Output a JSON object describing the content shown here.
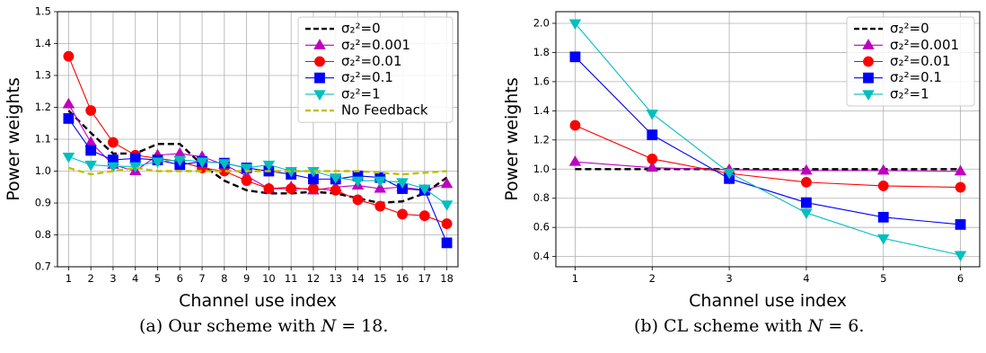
{
  "chart_data": [
    {
      "type": "line",
      "xlabel": "Channel use index",
      "ylabel": "Power weights",
      "xlim": [
        0.5,
        18.5
      ],
      "ylim": [
        0.7,
        1.5
      ],
      "xticks": [
        1,
        2,
        3,
        4,
        5,
        6,
        7,
        8,
        9,
        10,
        11,
        12,
        13,
        14,
        15,
        16,
        17,
        18
      ],
      "yticks": [
        0.7,
        0.8,
        0.9,
        1.0,
        1.1,
        1.2,
        1.3,
        1.4,
        1.5
      ],
      "ytick_decimals": 1,
      "grid": true,
      "legend_position": "top-right",
      "x": [
        1,
        2,
        3,
        4,
        5,
        6,
        7,
        8,
        9,
        10,
        11,
        12,
        13,
        14,
        15,
        16,
        17,
        18
      ],
      "series": [
        {
          "name": "σ₂²=0",
          "color": "#000000",
          "style": "dashed",
          "marker": "none",
          "values": [
            1.19,
            1.12,
            1.055,
            1.055,
            1.085,
            1.085,
            1.02,
            0.97,
            0.94,
            0.93,
            0.93,
            0.935,
            0.93,
            0.915,
            0.9,
            0.905,
            0.93,
            0.98
          ]
        },
        {
          "name": "σ₂²=0.001",
          "color": "#bf00bf",
          "style": "solid",
          "marker": "triangle-up",
          "values": [
            1.21,
            1.09,
            1.02,
            1.0,
            1.05,
            1.055,
            1.045,
            1.02,
            0.985,
            0.945,
            0.95,
            0.94,
            0.95,
            0.955,
            0.945,
            0.95,
            0.94,
            0.96
          ]
        },
        {
          "name": "σ₂²=0.01",
          "color": "#ff0000",
          "style": "solid",
          "marker": "circle",
          "values": [
            1.36,
            1.19,
            1.09,
            1.05,
            1.04,
            1.03,
            1.01,
            1.0,
            0.97,
            0.945,
            0.945,
            0.945,
            0.94,
            0.91,
            0.89,
            0.865,
            0.86,
            0.835
          ]
        },
        {
          "name": "σ₂²=0.1",
          "color": "#0000ff",
          "style": "solid",
          "marker": "square",
          "values": [
            1.165,
            1.065,
            1.035,
            1.04,
            1.035,
            1.02,
            1.03,
            1.025,
            1.01,
            1.0,
            0.99,
            0.975,
            0.975,
            0.985,
            0.98,
            0.945,
            0.94,
            0.775
          ]
        },
        {
          "name": "σ₂²=1",
          "color": "#00bfbf",
          "style": "solid",
          "marker": "triangle-down",
          "values": [
            1.045,
            1.02,
            1.015,
            1.015,
            1.03,
            1.035,
            1.03,
            1.025,
            1.01,
            1.02,
            1.0,
            1.0,
            0.98,
            0.97,
            0.97,
            0.965,
            0.945,
            0.895
          ]
        },
        {
          "name": "No Feedback",
          "color": "#bfbf00",
          "style": "dashed",
          "marker": "none",
          "values": [
            1.01,
            0.99,
            1.0,
            1.01,
            1.0,
            1.0,
            1.0,
            1.0,
            1.0,
            1.0,
            1.0,
            1.0,
            1.0,
            1.0,
            0.995,
            0.99,
            0.995,
            1.0
          ]
        }
      ]
    },
    {
      "type": "line",
      "xlabel": "Channel use index",
      "ylabel": "Power weights",
      "xlim": [
        0.75,
        6.25
      ],
      "ylim": [
        0.33,
        2.08
      ],
      "xticks": [
        1,
        2,
        3,
        4,
        5,
        6
      ],
      "yticks": [
        0.4,
        0.6,
        0.8,
        1.0,
        1.2,
        1.4,
        1.6,
        1.8,
        2.0
      ],
      "ytick_decimals": 1,
      "grid": true,
      "legend_position": "top-right",
      "x": [
        1,
        2,
        3,
        4,
        5,
        6
      ],
      "series": [
        {
          "name": "σ₂²=0",
          "color": "#000000",
          "style": "dashed",
          "marker": "none",
          "values": [
            1.0,
            1.0,
            1.0,
            1.0,
            1.0,
            1.0
          ]
        },
        {
          "name": "σ₂²=0.001",
          "color": "#bf00bf",
          "style": "solid",
          "marker": "triangle-up",
          "values": [
            1.05,
            1.01,
            0.995,
            0.99,
            0.99,
            0.985
          ]
        },
        {
          "name": "σ₂²=0.01",
          "color": "#ff0000",
          "style": "solid",
          "marker": "circle",
          "values": [
            1.3,
            1.07,
            0.97,
            0.91,
            0.885,
            0.875
          ]
        },
        {
          "name": "σ₂²=0.1",
          "color": "#0000ff",
          "style": "solid",
          "marker": "square",
          "values": [
            1.77,
            1.235,
            0.935,
            0.77,
            0.67,
            0.62
          ]
        },
        {
          "name": "σ₂²=1",
          "color": "#00bfbf",
          "style": "solid",
          "marker": "triangle-down",
          "values": [
            2.0,
            1.38,
            0.975,
            0.7,
            0.525,
            0.41
          ]
        }
      ]
    }
  ],
  "captions": [
    {
      "prefix": "(a) Our scheme with ",
      "variable": "N",
      "suffix": " = 18."
    },
    {
      "prefix": "(b) CL scheme with ",
      "variable": "N",
      "suffix": " = 6."
    }
  ]
}
